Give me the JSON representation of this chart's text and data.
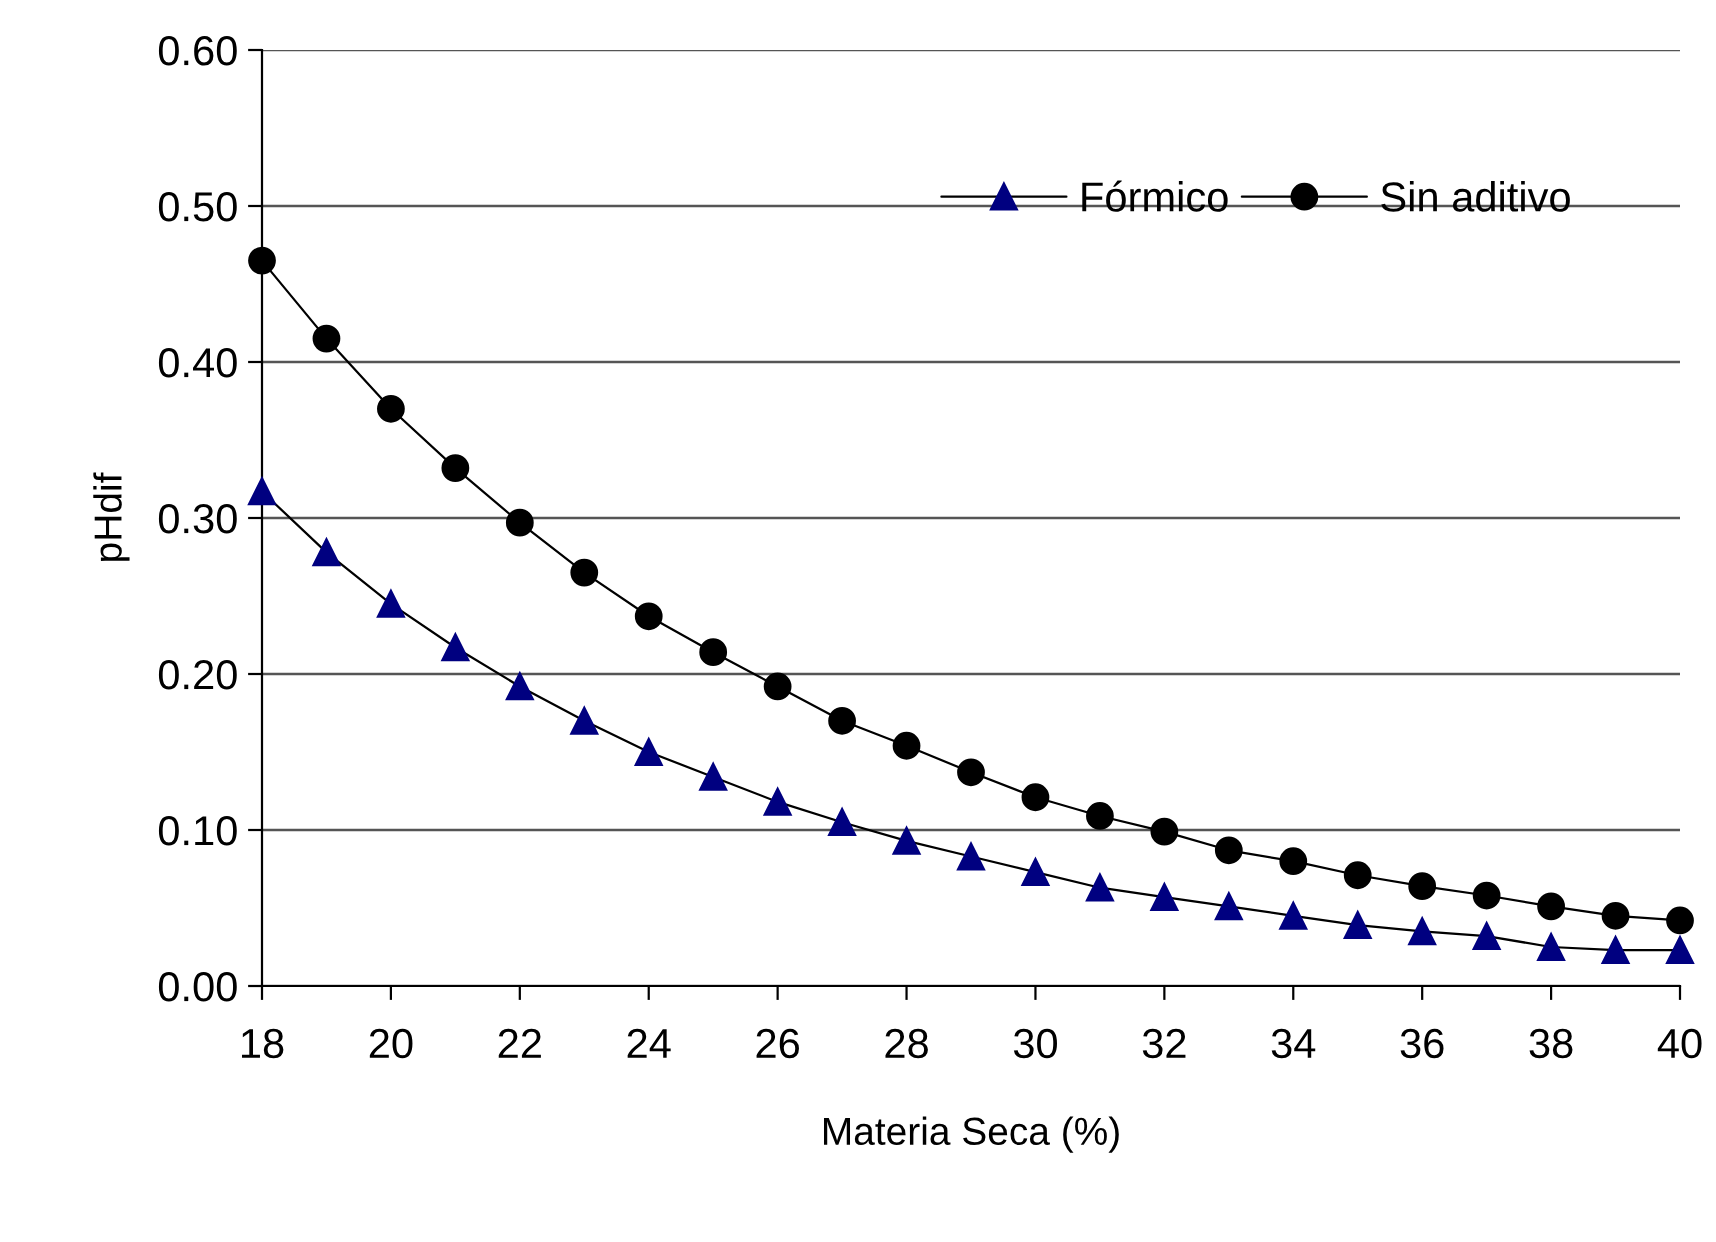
{
  "chart_data": {
    "type": "line",
    "xlabel": "Materia Seca (%)",
    "ylabel": "pHdif",
    "x": [
      18,
      19,
      20,
      21,
      22,
      23,
      24,
      25,
      26,
      27,
      28,
      29,
      30,
      31,
      32,
      33,
      34,
      35,
      36,
      37,
      38,
      39,
      40
    ],
    "series": [
      {
        "name": "Fórmico",
        "color": "#000080",
        "marker": "triangle",
        "values": [
          0.317,
          0.278,
          0.245,
          0.217,
          0.192,
          0.17,
          0.15,
          0.134,
          0.118,
          0.105,
          0.093,
          0.083,
          0.073,
          0.063,
          0.057,
          0.051,
          0.045,
          0.039,
          0.035,
          0.032,
          0.025,
          0.023,
          0.023
        ]
      },
      {
        "name": "Sin aditivo",
        "color": "#000000",
        "marker": "circle",
        "values": [
          0.465,
          0.415,
          0.37,
          0.332,
          0.297,
          0.265,
          0.237,
          0.214,
          0.192,
          0.17,
          0.154,
          0.137,
          0.121,
          0.109,
          0.099,
          0.087,
          0.08,
          0.071,
          0.064,
          0.058,
          0.051,
          0.045,
          0.042
        ]
      }
    ],
    "xlim": [
      18,
      40
    ],
    "xticks": [
      18,
      20,
      22,
      24,
      26,
      28,
      30,
      32,
      34,
      36,
      38,
      40
    ],
    "ylim": [
      0,
      0.6
    ],
    "yticks": [
      {
        "value": 0,
        "label": "0.00"
      },
      {
        "value": 0.1,
        "label": "0.10"
      },
      {
        "value": 0.2,
        "label": "0.20"
      },
      {
        "value": 0.3,
        "label": "0.30"
      },
      {
        "value": 0.4,
        "label": "0.40"
      },
      {
        "value": 0.5,
        "label": "0.50"
      },
      {
        "value": 0.6,
        "label": "0.60"
      }
    ],
    "grid": "y",
    "legend": "top right",
    "line_style": "solid"
  }
}
